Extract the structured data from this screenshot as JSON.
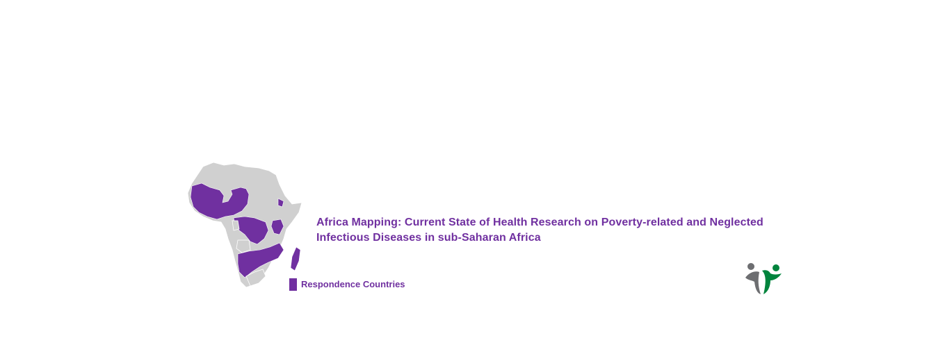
{
  "title_line1": "Africa Mapping: Current State of Health Research on Poverty-related and Neglected",
  "title_line2": "Infectious Diseases in sub-Saharan Africa",
  "legend": {
    "label": "Respondence Countries"
  },
  "map": {
    "region": "Africa",
    "highlighted_color": "#7030a0",
    "base_color": "#d0d0d0"
  },
  "logo": {
    "icon": "two-figures-logo-icon",
    "colors": {
      "grey": "#6d6e71",
      "green": "#00843d"
    }
  },
  "colors": {
    "accent": "#7030a0",
    "background": "#ffffff"
  }
}
